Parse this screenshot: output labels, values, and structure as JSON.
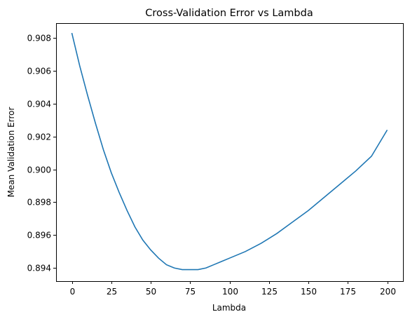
{
  "chart_data": {
    "type": "line",
    "title": "Cross-Validation Error vs Lambda",
    "xlabel": "Lambda",
    "ylabel": "Mean Validation Error",
    "xlim": [
      -10,
      210
    ],
    "ylim": [
      0.8932,
      0.9089
    ],
    "xticks": [
      0,
      25,
      50,
      75,
      100,
      125,
      150,
      175,
      200
    ],
    "yticks": [
      0.894,
      0.896,
      0.898,
      0.9,
      0.902,
      0.904,
      0.906,
      0.908
    ],
    "ytick_labels": [
      "0.894",
      "0.896",
      "0.898",
      "0.900",
      "0.902",
      "0.904",
      "0.906",
      "0.908"
    ],
    "xtick_labels": [
      "0",
      "25",
      "50",
      "75",
      "100",
      "125",
      "150",
      "175",
      "200"
    ],
    "grid": false,
    "series": [
      {
        "color": "#1f77b4",
        "x": [
          0,
          5,
          10,
          15,
          20,
          25,
          30,
          35,
          40,
          45,
          50,
          55,
          60,
          65,
          70,
          75,
          80,
          85,
          90,
          95,
          100,
          110,
          120,
          130,
          140,
          150,
          160,
          170,
          180,
          190,
          200
        ],
        "y": [
          0.9083,
          0.9063,
          0.9045,
          0.9028,
          0.9012,
          0.8998,
          0.8986,
          0.8975,
          0.8965,
          0.8957,
          0.8951,
          0.8946,
          0.8942,
          0.894,
          0.8939,
          0.8939,
          0.8939,
          0.894,
          0.8942,
          0.8944,
          0.8946,
          0.895,
          0.8955,
          0.8961,
          0.8968,
          0.8975,
          0.8983,
          0.8991,
          0.8999,
          0.9008,
          0.9024
        ]
      }
    ]
  }
}
